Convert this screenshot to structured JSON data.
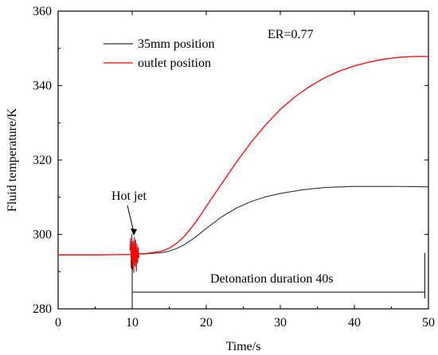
{
  "chart_data": {
    "type": "line",
    "xlabel": "Time/s",
    "ylabel": "Fluid temperature/K",
    "xlim": [
      0,
      50
    ],
    "ylim": [
      280,
      360
    ],
    "x_ticks": [
      0,
      10,
      20,
      30,
      40,
      50
    ],
    "y_ticks": [
      280,
      300,
      320,
      340,
      360
    ],
    "grid": false,
    "legend_position": "top-center",
    "series": [
      {
        "name": "35mm  position",
        "color": "#333333",
        "x": [
          0,
          5,
          9.8,
          12,
          14,
          15,
          16,
          17,
          18,
          19,
          20,
          22,
          24,
          26,
          28,
          30,
          33,
          36,
          40,
          45,
          50
        ],
        "y": [
          294.5,
          294.5,
          294.6,
          294.8,
          295.1,
          295.5,
          296.2,
          297.2,
          298.5,
          300.0,
          301.6,
          304.6,
          307.0,
          308.8,
          310.1,
          311.0,
          312.0,
          312.6,
          312.9,
          312.9,
          312.8
        ]
      },
      {
        "name": "outlet position",
        "color": "#ff0000",
        "x": [
          0,
          5,
          9.8,
          12,
          14,
          15,
          16,
          17,
          18,
          19,
          20,
          22,
          24,
          26,
          28,
          30,
          32,
          34,
          36,
          38,
          40,
          42,
          44,
          46,
          48,
          50
        ],
        "y": [
          294.5,
          294.5,
          294.6,
          294.9,
          295.5,
          296.3,
          297.6,
          299.4,
          301.8,
          304.5,
          307.5,
          313.4,
          319.2,
          324.6,
          329.4,
          333.6,
          337.0,
          339.8,
          342.1,
          343.9,
          345.3,
          346.3,
          347.1,
          347.6,
          347.8,
          347.8
        ]
      }
    ],
    "annotations": {
      "er": "ER=0.77",
      "hot_jet": "Hot jet",
      "duration": "Detonation duration 40s",
      "hot_jet_x": 10,
      "duration_start_x": 10,
      "duration_end_x": 49.5,
      "duration_line_y": 284.5
    }
  }
}
